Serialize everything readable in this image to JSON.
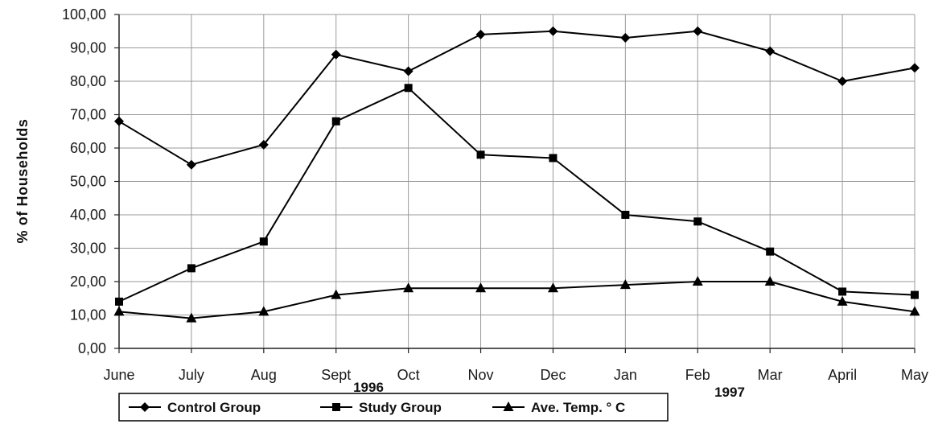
{
  "chart_data": {
    "type": "line",
    "ylabel": "% of Households",
    "ylim": [
      0,
      100
    ],
    "ytick_labels": [
      "0,00",
      "10,00",
      "20,00",
      "30,00",
      "40,00",
      "50,00",
      "60,00",
      "70,00",
      "80,00",
      "90,00",
      "100,00"
    ],
    "categories": [
      "June",
      "July",
      "Aug",
      "Sept",
      "Oct",
      "Nov",
      "Dec",
      "Jan",
      "Feb",
      "Mar",
      "April",
      "May"
    ],
    "year_labels": [
      "1996",
      "1997"
    ],
    "grid": true,
    "legend": "bottom",
    "series": [
      {
        "name": "Control Group",
        "marker": "diamond",
        "color": "#000000",
        "values": [
          68,
          55,
          61,
          88,
          83,
          94,
          95,
          93,
          95,
          89,
          80,
          84
        ]
      },
      {
        "name": "Study Group",
        "marker": "square",
        "color": "#000000",
        "values": [
          14,
          24,
          32,
          68,
          78,
          58,
          57,
          40,
          38,
          29,
          17,
          16
        ]
      },
      {
        "name": "Ave. Temp. ° C",
        "marker": "triangle",
        "color": "#000000",
        "values": [
          11,
          9,
          11,
          16,
          18,
          18,
          18,
          19,
          20,
          20,
          14,
          11
        ]
      }
    ]
  }
}
